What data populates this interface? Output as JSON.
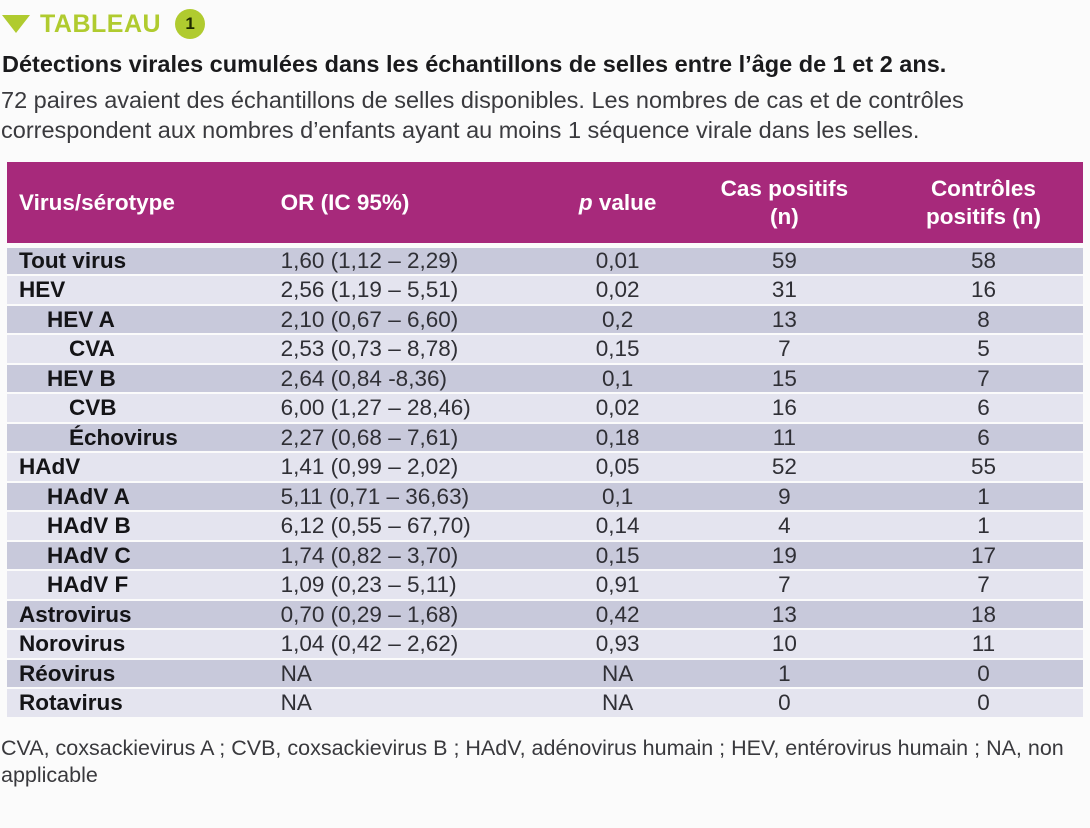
{
  "kicker": {
    "label": "TABLEAU",
    "badge": "1"
  },
  "title": "Détections virales cumulées dans les échantillons de selles entre l’âge de 1 et 2 ans.",
  "subtitle": "72 paires avaient des échantillons de selles disponibles. Les nombres de cas et de contrôles correspondent aux nombres d’enfants ayant au moins 1 séquence virale dans les selles.",
  "colors": {
    "lime": "#b0cb2f",
    "magenta": "#a7297b",
    "row_dark": "#c8c9db",
    "row_light": "#e4e4ef"
  },
  "table": {
    "columns": [
      {
        "label": "Virus/sérotype"
      },
      {
        "label": "OR (IC 95%)"
      },
      {
        "label_italic": "p",
        "label": " value"
      },
      {
        "label": "Cas positifs (n)"
      },
      {
        "label": "Contrôles positifs (n)"
      }
    ],
    "rows": [
      {
        "virus": "Tout virus",
        "indent": 0,
        "or": "1,60 (1,12 – 2,29)",
        "p": "0,01",
        "cas": "59",
        "controles": "58"
      },
      {
        "virus": "HEV",
        "indent": 0,
        "or": "2,56 (1,19 – 5,51)",
        "p": "0,02",
        "cas": "31",
        "controles": "16"
      },
      {
        "virus": "HEV A",
        "indent": 1,
        "or": "2,10 (0,67 – 6,60)",
        "p": "0,2",
        "cas": "13",
        "controles": "8"
      },
      {
        "virus": "CVA",
        "indent": 2,
        "or": "2,53 (0,73 – 8,78)",
        "p": "0,15",
        "cas": "7",
        "controles": "5"
      },
      {
        "virus": "HEV B",
        "indent": 1,
        "or": "2,64 (0,84 -8,36)",
        "p": "0,1",
        "cas": "15",
        "controles": "7"
      },
      {
        "virus": "CVB",
        "indent": 2,
        "or": "6,00 (1,27 – 28,46)",
        "p": "0,02",
        "cas": "16",
        "controles": "6"
      },
      {
        "virus": "Échovirus",
        "indent": 2,
        "or": "2,27 (0,68 – 7,61)",
        "p": "0,18",
        "cas": "11",
        "controles": "6"
      },
      {
        "virus": "HAdV",
        "indent": 0,
        "or": "1,41 (0,99 – 2,02)",
        "p": "0,05",
        "cas": "52",
        "controles": "55"
      },
      {
        "virus": "HAdV A",
        "indent": 1,
        "or": "5,11 (0,71 – 36,63)",
        "p": "0,1",
        "cas": "9",
        "controles": "1"
      },
      {
        "virus": "HAdV B",
        "indent": 1,
        "or": "6,12 (0,55 – 67,70)",
        "p": "0,14",
        "cas": "4",
        "controles": "1"
      },
      {
        "virus": "HAdV C",
        "indent": 1,
        "or": "1,74 (0,82 – 3,70)",
        "p": "0,15",
        "cas": "19",
        "controles": "17"
      },
      {
        "virus": "HAdV F",
        "indent": 1,
        "or": "1,09 (0,23 – 5,11)",
        "p": "0,91",
        "cas": "7",
        "controles": "7"
      },
      {
        "virus": "Astrovirus",
        "indent": 0,
        "or": "0,70 (0,29 – 1,68)",
        "p": "0,42",
        "cas": "13",
        "controles": "18"
      },
      {
        "virus": "Norovirus",
        "indent": 0,
        "or": "1,04 (0,42 – 2,62)",
        "p": "0,93",
        "cas": "10",
        "controles": "11"
      },
      {
        "virus": "Réovirus",
        "indent": 0,
        "or": "NA",
        "p": "NA",
        "cas": "1",
        "controles": "0"
      },
      {
        "virus": "Rotavirus",
        "indent": 0,
        "or": "NA",
        "p": "NA",
        "cas": "0",
        "controles": "0"
      }
    ]
  },
  "footnote": "CVA, coxsackievirus A ; CVB, coxsackievirus B ; HAdV, adénovirus humain ; HEV, entérovirus humain ; NA, non applicable"
}
